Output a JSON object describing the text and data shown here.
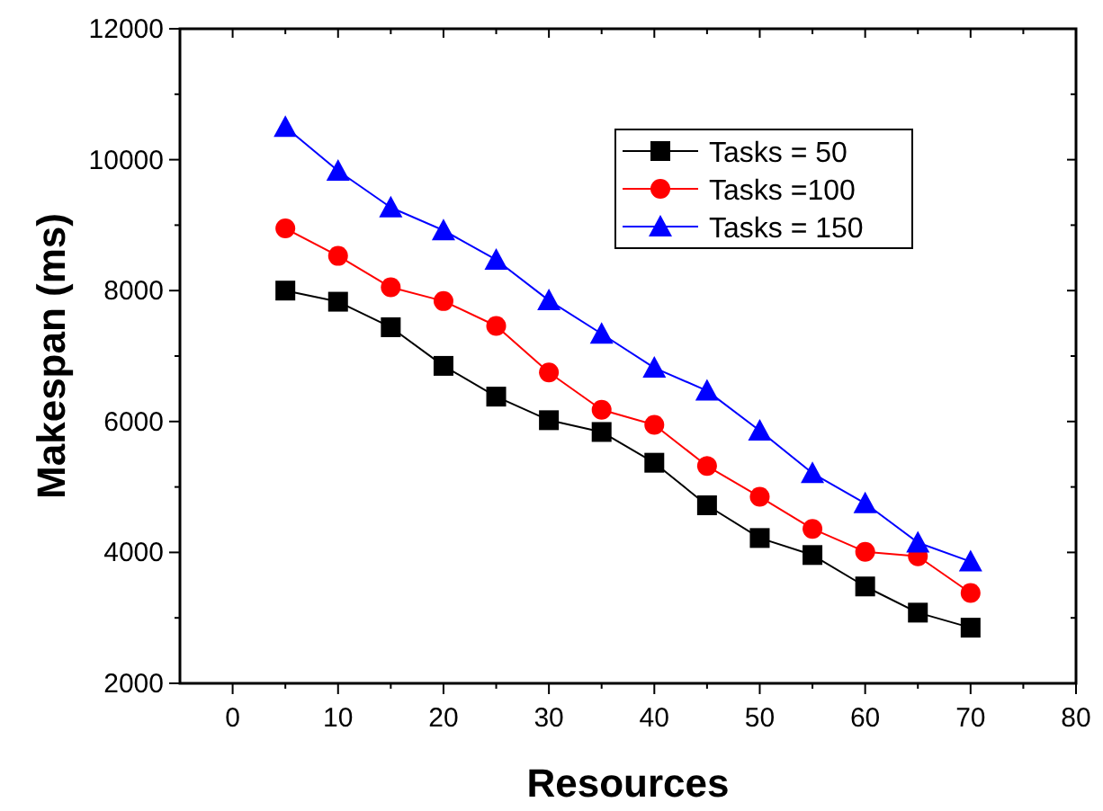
{
  "chart_data": {
    "type": "line",
    "xlabel": "Resources",
    "ylabel": "Makespan (ms)",
    "x": [
      5,
      10,
      15,
      20,
      25,
      30,
      35,
      40,
      45,
      50,
      55,
      60,
      65,
      70
    ],
    "series": [
      {
        "name": "Tasks = 50",
        "color": "#000000",
        "marker": "square",
        "values": [
          8000,
          7830,
          7440,
          6850,
          6380,
          6020,
          5840,
          5370,
          4720,
          4220,
          3960,
          3480,
          3080,
          2850
        ]
      },
      {
        "name": "Tasks =100",
        "color": "#ff0000",
        "marker": "circle",
        "values": [
          8950,
          8530,
          8050,
          7840,
          7460,
          6750,
          6180,
          5950,
          5320,
          4850,
          4360,
          4010,
          3940,
          3380
        ]
      },
      {
        "name": "Tasks = 150",
        "color": "#0000ff",
        "marker": "triangle",
        "values": [
          10500,
          9830,
          9270,
          8920,
          8470,
          7850,
          7340,
          6820,
          6470,
          5860,
          5210,
          4750,
          4150,
          3860
        ]
      }
    ],
    "xlim": [
      -5,
      80
    ],
    "xticks": [
      0,
      10,
      20,
      30,
      40,
      50,
      60,
      70,
      80
    ],
    "ylim": [
      2000,
      12000
    ],
    "yticks": [
      2000,
      4000,
      6000,
      8000,
      10000,
      12000
    ],
    "grid": false,
    "legend": "top right",
    "line_style": "solid"
  }
}
